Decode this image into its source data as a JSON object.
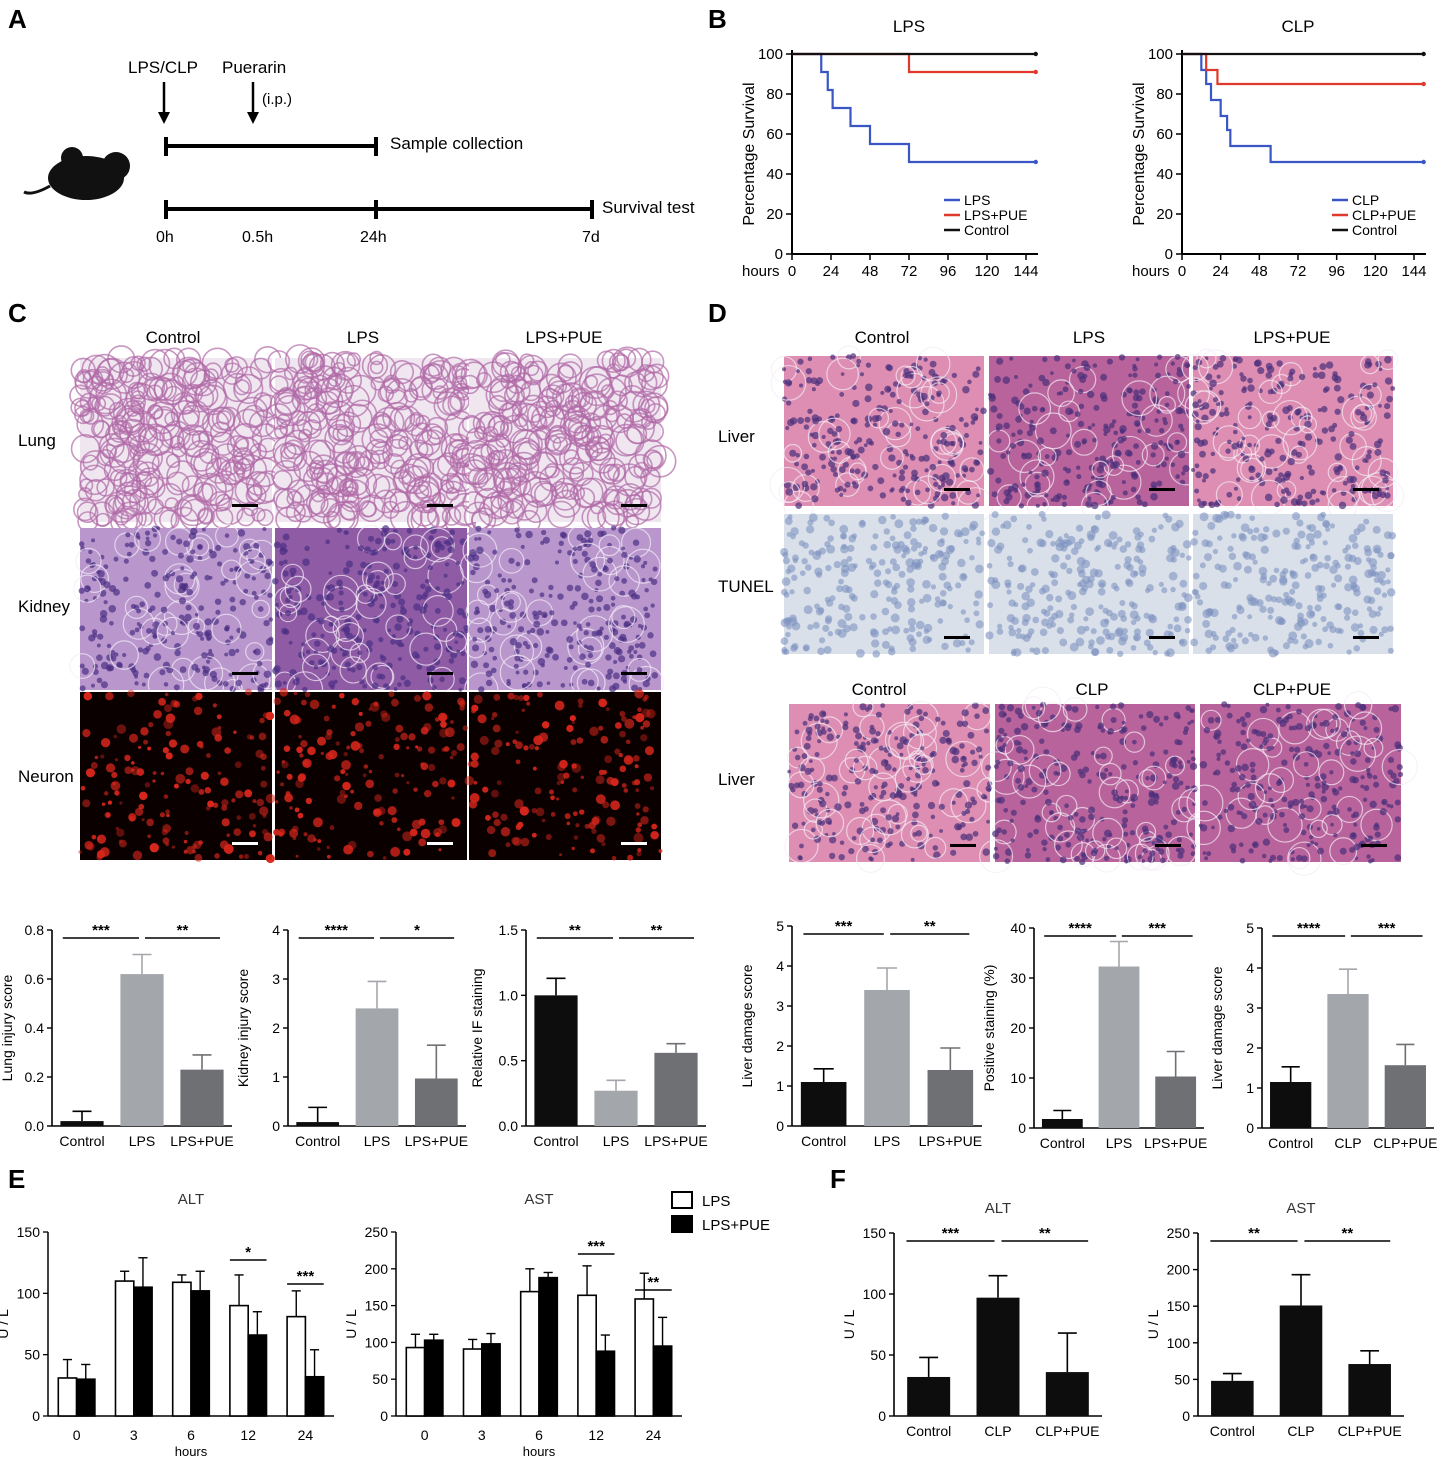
{
  "panel_letters": [
    "A",
    "B",
    "C",
    "D",
    "E",
    "F"
  ],
  "colors": {
    "lps_blue": "#3a56c4",
    "pue_red": "#e0382c",
    "control_black": "#111111",
    "bar_black": "#0d0d0d",
    "bar_gray": "#a3a6ab",
    "bar_dark_gray": "#6e7074",
    "he_pink": "#d67aa8",
    "kidney_purple": "#a784bf",
    "tunel_blue": "#cfd9e6",
    "neuron_red": "#d8261c"
  },
  "panelA": {
    "lps_clp": "LPS/CLP",
    "puerarin": "Puerarin",
    "ip": "(i.p.)",
    "sample_collection": "Sample collection",
    "survival_test": "Survival test",
    "ticks": [
      "0h",
      "0.5h",
      "24h",
      "7d"
    ],
    "icon": "mouse-icon"
  },
  "panelC": {
    "columns": [
      "Control",
      "LPS",
      "LPS+PUE"
    ],
    "rows": [
      "Lung",
      "Kidney",
      "Neuron"
    ]
  },
  "panelD": {
    "columns": [
      "Control",
      "LPS",
      "LPS+PUE"
    ],
    "rows": [
      "Liver",
      "TUNEL"
    ],
    "columns2": [
      "Control",
      "CLP",
      "CLP+PUE"
    ],
    "row2": "Liver"
  },
  "legendE": [
    "LPS",
    "LPS+PUE"
  ],
  "chart_data": [
    {
      "id": "B-LPS",
      "type": "line",
      "title": "LPS",
      "xlabel": "hours",
      "ylabel": "Percentage Survival",
      "xlim": [
        0,
        144
      ],
      "ylim": [
        0,
        100
      ],
      "xticks": [
        "0",
        "24",
        "48",
        "72",
        "96",
        "120",
        "144"
      ],
      "yticks": [
        "0",
        "20",
        "40",
        "60",
        "80",
        "100"
      ],
      "legend": "bottom-right",
      "series": [
        {
          "name": "LPS",
          "color": "#3a56c4",
          "steps": [
            [
              0,
              100
            ],
            [
              18,
              100
            ],
            [
              18,
              91
            ],
            [
              22,
              91
            ],
            [
              22,
              82
            ],
            [
              25,
              82
            ],
            [
              25,
              73
            ],
            [
              36,
              73
            ],
            [
              36,
              64
            ],
            [
              48,
              64
            ],
            [
              48,
              55
            ],
            [
              72,
              55
            ],
            [
              72,
              46
            ],
            [
              150,
              46
            ]
          ]
        },
        {
          "name": "LPS+PUE",
          "color": "#e0382c",
          "steps": [
            [
              0,
              100
            ],
            [
              72,
              100
            ],
            [
              72,
              91
            ],
            [
              150,
              91
            ]
          ]
        },
        {
          "name": "Control",
          "color": "#111111",
          "steps": [
            [
              0,
              100
            ],
            [
              150,
              100
            ]
          ]
        }
      ]
    },
    {
      "id": "B-CLP",
      "type": "line",
      "title": "CLP",
      "xlabel": "hours",
      "ylabel": "Percentage Survival",
      "xlim": [
        0,
        144
      ],
      "ylim": [
        0,
        100
      ],
      "xticks": [
        "0",
        "24",
        "48",
        "72",
        "96",
        "120",
        "144"
      ],
      "yticks": [
        "0",
        "20",
        "40",
        "60",
        "80",
        "100"
      ],
      "legend": "bottom-right",
      "series": [
        {
          "name": "CLP",
          "color": "#3a56c4",
          "steps": [
            [
              0,
              100
            ],
            [
              12,
              100
            ],
            [
              12,
              92
            ],
            [
              15,
              92
            ],
            [
              15,
              85
            ],
            [
              18,
              85
            ],
            [
              18,
              77
            ],
            [
              24,
              77
            ],
            [
              24,
              69
            ],
            [
              28,
              69
            ],
            [
              28,
              62
            ],
            [
              30,
              62
            ],
            [
              30,
              54
            ],
            [
              55,
              54
            ],
            [
              55,
              46
            ],
            [
              150,
              46
            ]
          ]
        },
        {
          "name": "CLP+PUE",
          "color": "#e0382c",
          "steps": [
            [
              0,
              100
            ],
            [
              15,
              100
            ],
            [
              15,
              92
            ],
            [
              22,
              92
            ],
            [
              22,
              85
            ],
            [
              150,
              85
            ]
          ]
        },
        {
          "name": "Control",
          "color": "#111111",
          "steps": [
            [
              0,
              100
            ],
            [
              150,
              100
            ]
          ]
        }
      ]
    },
    {
      "id": "C-lung",
      "type": "bar",
      "ylabel": "Lung injury score",
      "categories": [
        "Control",
        "LPS",
        "LPS+PUE"
      ],
      "values": [
        0.02,
        0.62,
        0.23
      ],
      "errors": [
        0.04,
        0.08,
        0.06
      ],
      "colors": [
        "#0d0d0d",
        "#a3a6ab",
        "#6e7074"
      ],
      "ylim": [
        0,
        0.8
      ],
      "yticks": [
        "0.0",
        "0.2",
        "0.4",
        "0.6",
        "0.8"
      ],
      "sig": [
        {
          "from": 0,
          "to": 1,
          "label": "***"
        },
        {
          "from": 1,
          "to": 2,
          "label": "**"
        }
      ]
    },
    {
      "id": "C-kidney",
      "type": "bar",
      "ylabel": "Kidney injury score",
      "categories": [
        "Control",
        "LPS",
        "LPS+PUE"
      ],
      "values": [
        0.08,
        2.4,
        0.97
      ],
      "errors": [
        0.3,
        0.55,
        0.68
      ],
      "colors": [
        "#0d0d0d",
        "#a3a6ab",
        "#6e7074"
      ],
      "ylim": [
        0,
        4
      ],
      "yticks": [
        "0",
        "1",
        "2",
        "3",
        "4"
      ],
      "sig": [
        {
          "from": 0,
          "to": 1,
          "label": "****"
        },
        {
          "from": 1,
          "to": 2,
          "label": "*"
        }
      ]
    },
    {
      "id": "C-IF",
      "type": "bar",
      "ylabel": "Relative IF staining",
      "categories": [
        "Control",
        "LPS",
        "LPS+PUE"
      ],
      "values": [
        1.0,
        0.27,
        0.56
      ],
      "errors": [
        0.13,
        0.08,
        0.07
      ],
      "colors": [
        "#0d0d0d",
        "#a3a6ab",
        "#6e7074"
      ],
      "ylim": [
        0,
        1.5
      ],
      "yticks": [
        "0.0",
        "0.5",
        "1.0",
        "1.5"
      ],
      "sig": [
        {
          "from": 0,
          "to": 1,
          "label": "**"
        },
        {
          "from": 1,
          "to": 2,
          "label": "**"
        }
      ]
    },
    {
      "id": "D-liver-LPS",
      "type": "bar",
      "ylabel": "Liver damage score",
      "categories": [
        "Control",
        "LPS",
        "LPS+PUE"
      ],
      "values": [
        1.1,
        3.4,
        1.4
      ],
      "errors": [
        0.33,
        0.55,
        0.55
      ],
      "colors": [
        "#0d0d0d",
        "#a3a6ab",
        "#6e7074"
      ],
      "ylim": [
        0,
        5
      ],
      "yticks": [
        "0",
        "1",
        "2",
        "3",
        "4",
        "5"
      ],
      "sig": [
        {
          "from": 0,
          "to": 1,
          "label": "***"
        },
        {
          "from": 1,
          "to": 2,
          "label": "**"
        }
      ]
    },
    {
      "id": "D-tunel",
      "type": "bar",
      "ylabel": "Positive staining (%)",
      "categories": [
        "Control",
        "LPS",
        "LPS+PUE"
      ],
      "values": [
        1.8,
        32.3,
        10.3
      ],
      "errors": [
        1.7,
        5.0,
        5.0
      ],
      "colors": [
        "#0d0d0d",
        "#a3a6ab",
        "#6e7074"
      ],
      "ylim": [
        0,
        40
      ],
      "yticks": [
        "0",
        "10",
        "20",
        "30",
        "40"
      ],
      "sig": [
        {
          "from": 0,
          "to": 1,
          "label": "****"
        },
        {
          "from": 1,
          "to": 2,
          "label": "***"
        }
      ]
    },
    {
      "id": "D-liver-CLP",
      "type": "bar",
      "ylabel": "Liver damage score",
      "categories": [
        "Control",
        "CLP",
        "CLP+PUE"
      ],
      "values": [
        1.15,
        3.35,
        1.57
      ],
      "errors": [
        0.38,
        0.62,
        0.52
      ],
      "colors": [
        "#0d0d0d",
        "#a3a6ab",
        "#6e7074"
      ],
      "ylim": [
        0,
        5
      ],
      "yticks": [
        "0",
        "1",
        "2",
        "3",
        "4",
        "5"
      ],
      "sig": [
        {
          "from": 0,
          "to": 1,
          "label": "****"
        },
        {
          "from": 1,
          "to": 2,
          "label": "***"
        }
      ]
    },
    {
      "id": "E-ALT",
      "type": "bar",
      "title": "ALT",
      "ylabel": "U / L",
      "xlabel": "hours",
      "categories": [
        "0",
        "3",
        "6",
        "12",
        "24"
      ],
      "series": [
        {
          "name": "LPS",
          "values": [
            31,
            110,
            109,
            90,
            81
          ],
          "errors": [
            15,
            8,
            6,
            25,
            21
          ]
        },
        {
          "name": "LPS+PUE",
          "values": [
            30,
            105,
            102,
            66,
            32
          ],
          "errors": [
            12,
            24,
            16,
            19,
            22
          ]
        }
      ],
      "ylim": [
        0,
        150
      ],
      "yticks": [
        "0",
        "50",
        "100",
        "150"
      ],
      "sig": [
        {
          "group": 3,
          "label": "*"
        },
        {
          "group": 4,
          "label": "***"
        }
      ]
    },
    {
      "id": "E-AST",
      "type": "bar",
      "title": "AST",
      "ylabel": "U / L",
      "xlabel": "hours",
      "categories": [
        "0",
        "3",
        "6",
        "12",
        "24"
      ],
      "series": [
        {
          "name": "LPS",
          "values": [
            93,
            91,
            169,
            164,
            159
          ],
          "errors": [
            18,
            13,
            31,
            40,
            35
          ]
        },
        {
          "name": "LPS+PUE",
          "values": [
            103,
            98,
            188,
            88,
            95
          ],
          "errors": [
            8,
            14,
            7,
            22,
            39
          ]
        }
      ],
      "ylim": [
        0,
        250
      ],
      "yticks": [
        "0",
        "50",
        "100",
        "150",
        "200",
        "250"
      ],
      "sig": [
        {
          "group": 3,
          "label": "***"
        },
        {
          "group": 4,
          "label": "**"
        }
      ]
    },
    {
      "id": "F-ALT",
      "type": "bar",
      "title": "ALT",
      "ylabel": "U / L",
      "categories": [
        "Control",
        "CLP",
        "CLP+PUE"
      ],
      "values": [
        32,
        97,
        36
      ],
      "errors": [
        16,
        18,
        32
      ],
      "colors": [
        "#0d0d0d",
        "#0d0d0d",
        "#0d0d0d"
      ],
      "ylim": [
        0,
        150
      ],
      "yticks": [
        "0",
        "50",
        "100",
        "150"
      ],
      "sig": [
        {
          "from": 0,
          "to": 1,
          "label": "***"
        },
        {
          "from": 1,
          "to": 2,
          "label": "**"
        }
      ]
    },
    {
      "id": "F-AST",
      "type": "bar",
      "title": "AST",
      "ylabel": "U / L",
      "categories": [
        "Control",
        "CLP",
        "CLP+PUE"
      ],
      "values": [
        48,
        151,
        71
      ],
      "errors": [
        10,
        42,
        18
      ],
      "colors": [
        "#0d0d0d",
        "#0d0d0d",
        "#0d0d0d"
      ],
      "ylim": [
        0,
        250
      ],
      "yticks": [
        "0",
        "50",
        "100",
        "150",
        "200",
        "250"
      ],
      "sig": [
        {
          "from": 0,
          "to": 1,
          "label": "**"
        },
        {
          "from": 1,
          "to": 2,
          "label": "**"
        }
      ]
    }
  ]
}
